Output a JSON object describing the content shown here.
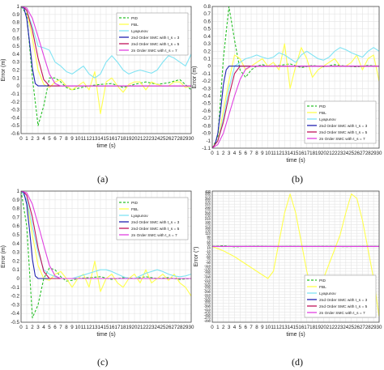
{
  "panel_captions": [
    "(a)",
    "(b)",
    "(c)",
    "(d)"
  ],
  "legend_entries": [
    {
      "name": "PID",
      "color": "#27c027",
      "dash": true
    },
    {
      "name": "FBL",
      "color": "#ffff4d",
      "dash": false
    },
    {
      "name": "Lyapunov",
      "color": "#7fe3f3",
      "dash": false
    },
    {
      "name": "2nd Order SMC with t_s = 3",
      "color": "#1f1fb0",
      "dash": false
    },
    {
      "name": "2nd Order SMC with t_s = 5",
      "color": "#c0145a",
      "dash": false
    },
    {
      "name": "2n Order SMC with t_s = 7",
      "color": "#e040e0",
      "dash": false
    }
  ],
  "chart_data": [
    {
      "type": "line",
      "caption": "(a)",
      "xlabel": "time (s)",
      "ylabel": "Error (m)",
      "xlim": [
        0,
        30
      ],
      "ylim": [
        -0.6,
        1.0
      ],
      "yticks": [
        1,
        0.9,
        0.8,
        0.7,
        0.6,
        0.5,
        0.4,
        0.3,
        0.2,
        0.1,
        0,
        -0.1,
        -0.2,
        -0.3,
        -0.4,
        -0.5,
        -0.6
      ],
      "grid": true,
      "legend_position": "top-right",
      "series": [
        {
          "name": "PID",
          "x": [
            0,
            1,
            2,
            3,
            4,
            5,
            6,
            7,
            8,
            9,
            10,
            12,
            14,
            16,
            18,
            20,
            22,
            24,
            26,
            28,
            30
          ],
          "y": [
            1,
            0.9,
            0.1,
            -0.5,
            -0.25,
            0.1,
            0.1,
            0.05,
            -0.02,
            -0.05,
            -0.03,
            0,
            0.02,
            0.03,
            -0.02,
            0.02,
            0.05,
            0.02,
            0.04,
            0.08,
            -0.05
          ]
        },
        {
          "name": "FBL",
          "x": [
            0,
            1,
            2,
            3,
            4,
            5,
            6,
            7,
            8,
            9,
            10,
            11,
            12,
            13,
            14,
            15,
            16,
            17,
            18,
            19,
            20,
            21,
            22,
            23,
            24,
            25,
            26,
            27,
            28,
            29,
            30
          ],
          "y": [
            1,
            0.95,
            0.6,
            0.2,
            0.02,
            -0.02,
            0.05,
            0.08,
            0,
            -0.05,
            0,
            0.05,
            -0.05,
            0.18,
            -0.35,
            0.05,
            0.1,
            0,
            -0.08,
            0.02,
            0.05,
            0.05,
            -0.05,
            0.05,
            0.02,
            0,
            0,
            0.05,
            0.05,
            -0.02,
            0
          ]
        },
        {
          "name": "Lyapunov",
          "x": [
            0,
            1,
            2,
            3,
            4,
            5,
            6,
            7,
            8,
            9,
            10,
            11,
            12,
            13,
            14,
            15,
            16,
            17,
            18,
            19,
            20,
            21,
            22,
            23,
            24,
            25,
            26,
            27,
            28,
            29,
            30
          ],
          "y": [
            1,
            0.95,
            0.75,
            0.5,
            0.48,
            0.45,
            0.3,
            0.25,
            0.18,
            0.15,
            0.2,
            0.25,
            0.15,
            0.1,
            0.15,
            0.3,
            0.38,
            0.3,
            0.2,
            0.15,
            0.18,
            0.2,
            0.18,
            0.16,
            0.2,
            0.3,
            0.38,
            0.35,
            0.3,
            0.25,
            0.4
          ]
        },
        {
          "name": "2nd Order SMC with t_s = 3",
          "x": [
            0,
            0.5,
            1,
            1.5,
            2,
            2.5,
            3,
            30
          ],
          "y": [
            1,
            0.98,
            0.85,
            0.55,
            0.22,
            0.03,
            0,
            0
          ]
        },
        {
          "name": "2nd Order SMC with t_s = 5",
          "x": [
            0,
            0.5,
            1,
            2,
            3,
            4,
            5,
            30
          ],
          "y": [
            1,
            0.99,
            0.95,
            0.7,
            0.35,
            0.08,
            0,
            0
          ]
        },
        {
          "name": "2n Order SMC with t_s = 7",
          "x": [
            0,
            1,
            2,
            3,
            4,
            5,
            6,
            7,
            30
          ],
          "y": [
            1,
            0.98,
            0.85,
            0.62,
            0.38,
            0.15,
            0.03,
            0,
            0
          ]
        }
      ]
    },
    {
      "type": "line",
      "caption": "(b)",
      "xlabel": "time (s)",
      "ylabel": "Error (m)",
      "xlim": [
        0,
        30
      ],
      "ylim": [
        -1.1,
        0.8
      ],
      "yticks": [
        0.8,
        0.7,
        0.6,
        0.5,
        0.4,
        0.3,
        0.2,
        0.1,
        0,
        -0.1,
        -0.2,
        -0.3,
        -0.4,
        -0.5,
        -0.6,
        -0.7,
        -0.8,
        -0.9,
        -1,
        -1.1
      ],
      "grid": true,
      "legend_position": "bottom-right",
      "series": [
        {
          "name": "PID",
          "x": [
            0,
            1,
            2,
            3,
            4,
            5,
            6,
            7,
            8,
            9,
            10,
            12,
            14,
            16,
            18,
            20,
            22,
            24,
            26,
            28,
            30
          ],
          "y": [
            -1.1,
            -0.95,
            0.1,
            0.8,
            0.35,
            -0.05,
            -0.15,
            -0.05,
            0,
            0.02,
            0,
            0.01,
            0.03,
            -0.02,
            0.01,
            -0.01,
            0.02,
            0,
            -0.01,
            0.01,
            0
          ]
        },
        {
          "name": "FBL",
          "x": [
            0,
            1,
            2,
            3,
            4,
            5,
            6,
            7,
            8,
            9,
            10,
            11,
            12,
            13,
            14,
            15,
            16,
            17,
            18,
            19,
            20,
            21,
            22,
            23,
            24,
            25,
            26,
            27,
            28,
            29,
            30
          ],
          "y": [
            -1.1,
            -1,
            -0.6,
            -0.2,
            0.15,
            0.1,
            -0.05,
            0,
            0.05,
            0.1,
            0,
            0.05,
            -0.05,
            0.3,
            -0.3,
            0,
            0.25,
            0.1,
            -0.15,
            -0.05,
            0,
            0.05,
            0.1,
            0,
            0,
            0.05,
            0.15,
            -0.05,
            0.1,
            0.15,
            -0.2
          ]
        },
        {
          "name": "Lyapunov",
          "x": [
            0,
            1,
            2,
            3,
            4,
            5,
            6,
            7,
            8,
            9,
            10,
            11,
            12,
            13,
            14,
            15,
            16,
            17,
            18,
            19,
            20,
            21,
            22,
            23,
            24,
            25,
            26,
            27,
            28,
            29,
            30
          ],
          "y": [
            -1.1,
            -1,
            -0.7,
            -0.3,
            0,
            0.05,
            0.1,
            0.12,
            0.15,
            0.12,
            0.1,
            0.12,
            0.18,
            0.15,
            0.1,
            0.05,
            0.15,
            0.2,
            0.15,
            0.1,
            0.08,
            0.12,
            0.2,
            0.25,
            0.22,
            0.18,
            0.15,
            0.12,
            0.2,
            0.25,
            0.2
          ]
        },
        {
          "name": "2nd Order SMC with t_s = 3",
          "x": [
            0,
            0.5,
            1,
            1.5,
            2,
            2.5,
            3,
            30
          ],
          "y": [
            -1.1,
            -1.05,
            -0.9,
            -0.6,
            -0.25,
            -0.05,
            0,
            0
          ]
        },
        {
          "name": "2nd Order SMC with t_s = 5",
          "x": [
            0,
            1,
            2,
            3,
            4,
            5,
            30
          ],
          "y": [
            -1.1,
            -1.0,
            -0.75,
            -0.4,
            -0.1,
            0,
            0
          ]
        },
        {
          "name": "2n Order SMC with t_s = 7",
          "x": [
            0,
            1,
            2,
            3,
            4,
            5,
            6,
            7,
            30
          ],
          "y": [
            -1.1,
            -1.05,
            -0.9,
            -0.65,
            -0.4,
            -0.18,
            -0.04,
            0,
            0
          ]
        }
      ]
    },
    {
      "type": "line",
      "caption": "(c)",
      "xlabel": "time (s)",
      "ylabel": "Error (m)",
      "xlim": [
        0,
        30
      ],
      "ylim": [
        -0.5,
        1.0
      ],
      "yticks": [
        1,
        0.9,
        0.8,
        0.7,
        0.6,
        0.5,
        0.4,
        0.3,
        0.2,
        0.1,
        0,
        -0.1,
        -0.2,
        -0.3,
        -0.4,
        -0.5
      ],
      "grid": true,
      "legend_position": "top-right",
      "series": [
        {
          "name": "PID",
          "x": [
            0,
            1,
            2,
            3,
            4,
            5,
            6,
            7,
            8,
            9,
            10,
            12,
            14,
            16,
            18,
            20,
            22,
            24,
            26,
            28,
            30
          ],
          "y": [
            1,
            0.6,
            -0.45,
            -0.3,
            0,
            0.12,
            0.1,
            0.02,
            -0.03,
            -0.02,
            0,
            0.01,
            0.02,
            -0.01,
            0.01,
            0,
            0.02,
            0,
            0.01,
            -0.01,
            0
          ]
        },
        {
          "name": "FBL",
          "x": [
            0,
            1,
            2,
            3,
            4,
            5,
            6,
            7,
            8,
            9,
            10,
            11,
            12,
            13,
            14,
            15,
            16,
            17,
            18,
            19,
            20,
            21,
            22,
            23,
            24,
            25,
            26,
            27,
            28,
            29,
            30
          ],
          "y": [
            1,
            0.9,
            0.5,
            0.15,
            0,
            -0.02,
            0.05,
            0.08,
            0,
            -0.1,
            0,
            0.05,
            -0.1,
            0.2,
            -0.15,
            0,
            0.05,
            -0.05,
            -0.1,
            0,
            0.05,
            -0.05,
            0.1,
            -0.05,
            0,
            0.05,
            -0.02,
            0.05,
            -0.05,
            -0.1,
            -0.2
          ]
        },
        {
          "name": "Lyapunov",
          "x": [
            0,
            1,
            2,
            3,
            4,
            5,
            6,
            7,
            8,
            9,
            10,
            11,
            12,
            13,
            14,
            15,
            16,
            17,
            18,
            19,
            20,
            21,
            22,
            23,
            24,
            25,
            26,
            27,
            28,
            29,
            30
          ],
          "y": [
            1,
            0.9,
            0.6,
            0.3,
            0.1,
            0.05,
            0.02,
            0,
            0,
            0,
            0.02,
            0.04,
            0.06,
            0.08,
            0.1,
            0.1,
            0.08,
            0.05,
            0.02,
            0,
            0,
            0.03,
            0.06,
            0.08,
            0.1,
            0.08,
            0.05,
            0.03,
            0.02,
            0.03,
            0.05
          ]
        },
        {
          "name": "2nd Order SMC with t_s = 3",
          "x": [
            0,
            0.5,
            1,
            1.5,
            2,
            2.5,
            3,
            30
          ],
          "y": [
            1,
            0.98,
            0.85,
            0.55,
            0.22,
            0.03,
            0,
            0
          ]
        },
        {
          "name": "2nd Order SMC with t_s = 5",
          "x": [
            0,
            0.5,
            1,
            2,
            3,
            4,
            5,
            30
          ],
          "y": [
            1,
            0.99,
            0.95,
            0.7,
            0.35,
            0.08,
            0,
            0
          ]
        },
        {
          "name": "2n Order SMC with t_s = 7",
          "x": [
            0,
            1,
            2,
            3,
            4,
            5,
            6,
            7,
            30
          ],
          "y": [
            1,
            0.98,
            0.85,
            0.62,
            0.38,
            0.15,
            0.03,
            0,
            0
          ]
        }
      ]
    },
    {
      "type": "line",
      "caption": "(d)",
      "xlabel": "time (s)",
      "ylabel": "Error (°)",
      "xlim": [
        0,
        30
      ],
      "ylim": [
        -500,
        400
      ],
      "yticks": [
        400,
        390,
        370,
        350,
        330,
        310,
        290,
        270,
        250,
        230,
        210,
        190,
        170,
        150,
        130,
        110,
        90,
        70,
        50,
        30,
        10,
        -10,
        -30,
        -50,
        -70,
        -90,
        -110,
        -130,
        -150,
        -170,
        -190,
        -210,
        -230,
        -250,
        -270,
        -290,
        -310,
        -330,
        -350,
        -370,
        -390,
        -410,
        -430,
        -450,
        -470,
        -490
      ],
      "grid": true,
      "legend_position": "bottom-right",
      "series": [
        {
          "name": "PID",
          "x": [
            0,
            2,
            4,
            6,
            8,
            10,
            12,
            14,
            16,
            18,
            20,
            22,
            24,
            26,
            28,
            30
          ],
          "y": [
            20,
            25,
            18,
            20,
            22,
            20,
            19,
            21,
            20,
            20,
            21,
            20,
            19,
            20,
            21,
            20
          ]
        },
        {
          "name": "FBL",
          "x": [
            0,
            2,
            4,
            6,
            8,
            10,
            11,
            12,
            13,
            14,
            15,
            16,
            17,
            18,
            19,
            20,
            21,
            22,
            23,
            24,
            25,
            26,
            27,
            28,
            29,
            30
          ],
          "y": [
            20,
            -10,
            -50,
            -100,
            -150,
            -200,
            -150,
            50,
            250,
            380,
            250,
            50,
            -150,
            -300,
            -310,
            -200,
            -100,
            0,
            100,
            250,
            380,
            350,
            200,
            0,
            -200,
            -460
          ]
        },
        {
          "name": "Lyapunov",
          "x": [
            0,
            5,
            10,
            15,
            20,
            25,
            30
          ],
          "y": [
            20,
            20,
            20,
            20,
            20,
            20,
            20
          ]
        },
        {
          "name": "2nd Order SMC with t_s = 3",
          "x": [
            0,
            30
          ],
          "y": [
            20,
            20
          ]
        },
        {
          "name": "2nd Order SMC with t_s = 5",
          "x": [
            0,
            30
          ],
          "y": [
            20,
            20
          ]
        },
        {
          "name": "2n Order SMC with t_s = 7",
          "x": [
            0,
            30
          ],
          "y": [
            20,
            20
          ]
        }
      ]
    }
  ]
}
